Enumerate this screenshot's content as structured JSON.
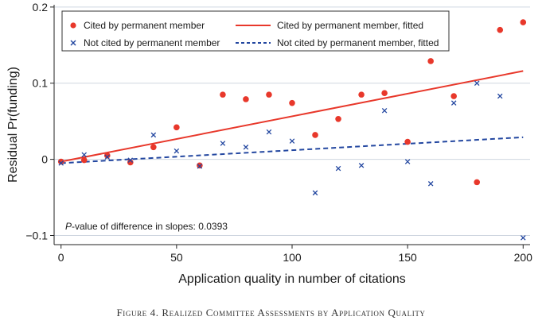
{
  "chart_data": {
    "type": "scatter",
    "xlabel": "Application quality in number of citations",
    "ylabel": "Residual Pr(funding)",
    "xlim": [
      -3,
      203
    ],
    "ylim": [
      -0.112,
      0.203
    ],
    "x_ticks": [
      0,
      50,
      100,
      150,
      200
    ],
    "x_tick_labels": [
      "0",
      "50",
      "100",
      "150",
      "200"
    ],
    "y_ticks": [
      -0.1,
      0,
      0.1,
      0.2
    ],
    "y_tick_labels": [
      "−0.1",
      "0",
      "0.1",
      "0.2"
    ],
    "grid": "horizontal",
    "legend_position": "top",
    "series": [
      {
        "name": "Cited by permanent member",
        "kind": "points",
        "marker": "circle",
        "color": "#e8382b",
        "points": [
          [
            0,
            -0.003
          ],
          [
            10,
            -0.001
          ],
          [
            20,
            0.005
          ],
          [
            30,
            -0.004
          ],
          [
            40,
            0.016
          ],
          [
            50,
            0.042
          ],
          [
            60,
            -0.008
          ],
          [
            70,
            0.085
          ],
          [
            80,
            0.079
          ],
          [
            90,
            0.085
          ],
          [
            100,
            0.074
          ],
          [
            110,
            0.032
          ],
          [
            120,
            0.053
          ],
          [
            130,
            0.085
          ],
          [
            140,
            0.087
          ],
          [
            150,
            0.023
          ],
          [
            160,
            0.129
          ],
          [
            170,
            0.083
          ],
          [
            180,
            -0.03
          ],
          [
            190,
            0.17
          ],
          [
            200,
            0.18
          ]
        ]
      },
      {
        "name": "Cited by permanent member, fitted",
        "kind": "line",
        "dash": "solid",
        "color": "#e8382b",
        "points": [
          [
            0,
            -0.003
          ],
          [
            200,
            0.116
          ]
        ]
      },
      {
        "name": "Not cited by permanent member",
        "kind": "points",
        "marker": "x",
        "color": "#2347a0",
        "points": [
          [
            0,
            -0.005
          ],
          [
            10,
            0.006
          ],
          [
            20,
            0.003
          ],
          [
            30,
            -0.001
          ],
          [
            40,
            0.032
          ],
          [
            50,
            0.011
          ],
          [
            60,
            -0.009
          ],
          [
            70,
            0.021
          ],
          [
            80,
            0.016
          ],
          [
            90,
            0.036
          ],
          [
            100,
            0.024
          ],
          [
            110,
            -0.044
          ],
          [
            120,
            -0.012
          ],
          [
            130,
            -0.008
          ],
          [
            140,
            0.064
          ],
          [
            150,
            -0.003
          ],
          [
            160,
            -0.032
          ],
          [
            170,
            0.074
          ],
          [
            180,
            0.1
          ],
          [
            190,
            0.083
          ],
          [
            200,
            -0.103
          ]
        ]
      },
      {
        "name": "Not cited by permanent member, fitted",
        "kind": "line",
        "dash": "dashed",
        "color": "#2347a0",
        "points": [
          [
            0,
            -0.005
          ],
          [
            200,
            0.029
          ]
        ]
      }
    ],
    "annotation_prefix": "P",
    "annotation_rest": "-value of difference in slopes: 0.0393"
  },
  "caption": "Figure 4. Realized Committee Assessments by Application Quality"
}
